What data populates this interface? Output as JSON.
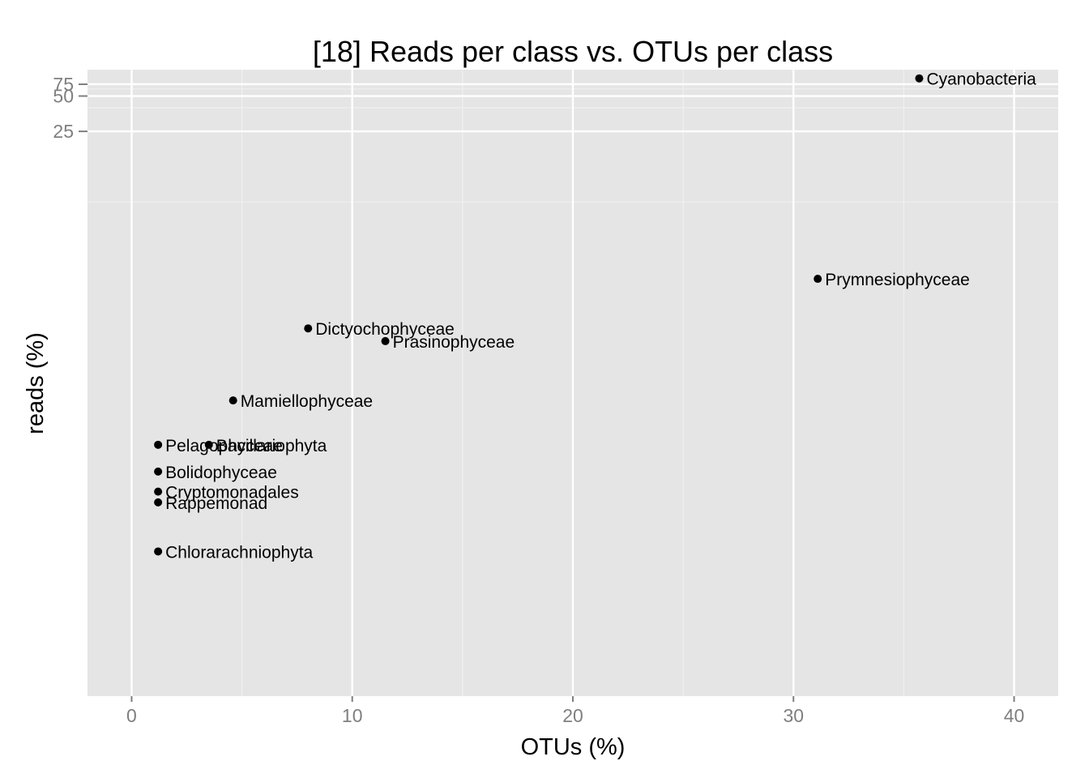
{
  "chart_data": {
    "type": "scatter",
    "title": "[18] Reads per class vs. OTUs per class",
    "xlabel": "OTUs (%)",
    "ylabel": "reads (%)",
    "xlim": [
      -2,
      42
    ],
    "x_ticks": [
      0,
      10,
      20,
      30,
      40
    ],
    "y_ticks": [
      25,
      50,
      75
    ],
    "y_scale": "reciprocal",
    "grid": true,
    "background": "#e5e5e5",
    "point_color": "#000000",
    "points": [
      {
        "label": "Cyanobacteria",
        "x": 35.7,
        "y": 100
      },
      {
        "label": "Prymnesiophyceae",
        "x": 31.1,
        "y": 8.1
      },
      {
        "label": "Dictyochophyceae",
        "x": 8.0,
        "y": 6.6
      },
      {
        "label": "Prasinophyceae",
        "x": 11.5,
        "y": 6.3
      },
      {
        "label": "Mamiellophyceae",
        "x": 4.6,
        "y": 5.2
      },
      {
        "label": "Bacillariophyta",
        "x": 3.5,
        "y": 4.6
      },
      {
        "label": "Pelagophyceae",
        "x": 1.2,
        "y": 4.6
      },
      {
        "label": "Bolidophyceae",
        "x": 1.2,
        "y": 4.3
      },
      {
        "label": "Cryptomonadales",
        "x": 1.2,
        "y": 4.1
      },
      {
        "label": "Rappemonad",
        "x": 1.2,
        "y": 4.0
      },
      {
        "label": "Chlorarachniophyta",
        "x": 1.2,
        "y": 3.6
      }
    ]
  }
}
